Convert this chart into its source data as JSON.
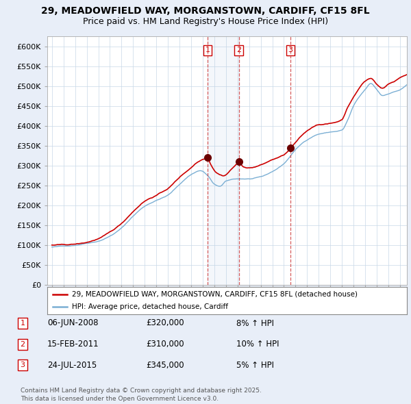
{
  "title_line1": "29, MEADOWFIELD WAY, MORGANSTOWN, CARDIFF, CF15 8FL",
  "title_line2": "Price paid vs. HM Land Registry's House Price Index (HPI)",
  "ylabel_ticks": [
    "£0",
    "£50K",
    "£100K",
    "£150K",
    "£200K",
    "£250K",
    "£300K",
    "£350K",
    "£400K",
    "£450K",
    "£500K",
    "£550K",
    "£600K"
  ],
  "ytick_values": [
    0,
    50000,
    100000,
    150000,
    200000,
    250000,
    300000,
    350000,
    400000,
    450000,
    500000,
    550000,
    600000
  ],
  "ylim": [
    0,
    625000
  ],
  "xlim_start": 1994.6,
  "xlim_end": 2025.6,
  "sale_dates": [
    2008.43,
    2011.12,
    2015.56
  ],
  "sale_prices": [
    320000,
    310000,
    345000
  ],
  "sale_labels": [
    "1",
    "2",
    "3"
  ],
  "sale_info": [
    {
      "label": "1",
      "date": "06-JUN-2008",
      "price": "£320,000",
      "hpi_change": "8% ↑ HPI"
    },
    {
      "label": "2",
      "date": "15-FEB-2011",
      "price": "£310,000",
      "hpi_change": "10% ↑ HPI"
    },
    {
      "label": "3",
      "date": "24-JUL-2015",
      "price": "£345,000",
      "hpi_change": "5% ↑ HPI"
    }
  ],
  "hpi_color": "#7bafd4",
  "price_color": "#cc0000",
  "background_color": "#e8eef8",
  "plot_bg_color": "#ffffff",
  "grid_color": "#c8d8e8",
  "legend_label_property": "29, MEADOWFIELD WAY, MORGANSTOWN, CARDIFF, CF15 8FL (detached house)",
  "legend_label_hpi": "HPI: Average price, detached house, Cardiff",
  "footnote": "Contains HM Land Registry data © Crown copyright and database right 2025.\nThis data is licensed under the Open Government Licence v3.0."
}
